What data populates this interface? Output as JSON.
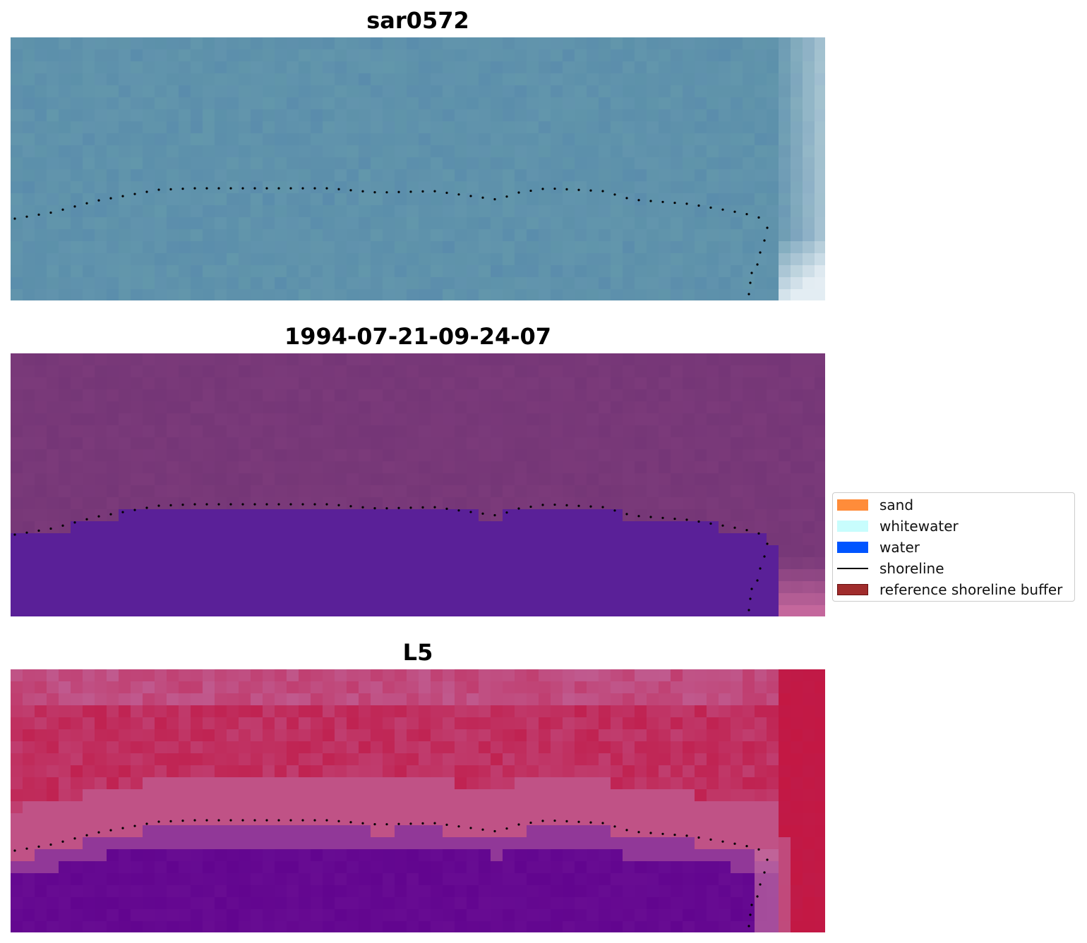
{
  "panels": [
    {
      "title": "sar0572"
    },
    {
      "title": "1994-07-21-09-24-07"
    },
    {
      "title": "L5"
    }
  ],
  "legend": {
    "items": [
      {
        "label": "sand",
        "color": "#ff8c3a",
        "kind": "patch"
      },
      {
        "label": "whitewater",
        "color": "#c8fdfd",
        "kind": "patch"
      },
      {
        "label": "water",
        "color": "#0055ff",
        "kind": "patch"
      },
      {
        "label": "shoreline",
        "color": "#000000",
        "kind": "line"
      },
      {
        "label": "reference shoreline buffer",
        "color": "#a02c2c",
        "kind": "patch"
      }
    ]
  },
  "colors": {
    "rgb_water": "#6294ad",
    "rgb_bright": "#f2f7fb",
    "class_background": "#7b3a7a",
    "class_water": "#5a2098",
    "class_edge": "#c86a9e",
    "ndwi_land": "#c01a48",
    "ndwi_water": "#62058f",
    "ndwi_mid": "#c06aa0"
  }
}
